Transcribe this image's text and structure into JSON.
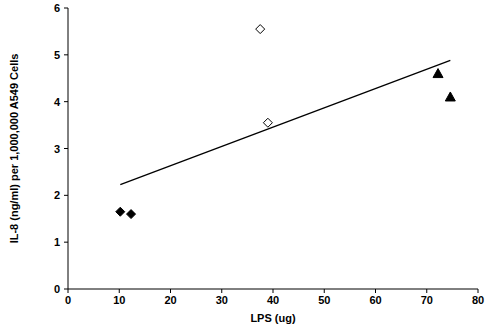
{
  "chart_data": {
    "type": "scatter",
    "x_label": "LPS (ug)",
    "y_label": "IL-8 (ng/ml) per 1,000,000 A549 Cells",
    "xlim": [
      0,
      80
    ],
    "xticks": [
      0,
      10,
      20,
      30,
      40,
      50,
      60,
      70,
      80
    ],
    "ylim": [
      0,
      6
    ],
    "yticks": [
      0,
      1,
      2,
      3,
      4,
      5,
      6
    ],
    "grid": false,
    "series": [
      {
        "color": "#000000",
        "marker": "diamond",
        "x": [
          10.2,
          12.3
        ],
        "values": [
          1.65,
          1.6
        ]
      },
      {
        "color": "#000000",
        "marker": "open-diamond",
        "x": [
          37.5,
          39.0
        ],
        "values": [
          5.55,
          3.55
        ]
      },
      {
        "color": "#000000",
        "marker": "triangle",
        "x": [
          72.2,
          74.6
        ],
        "values": [
          4.6,
          4.1
        ]
      },
      {
        "color": "#000000",
        "type": "line",
        "x": [
          10.2,
          74.6
        ],
        "values": [
          2.23,
          4.88
        ]
      }
    ]
  }
}
